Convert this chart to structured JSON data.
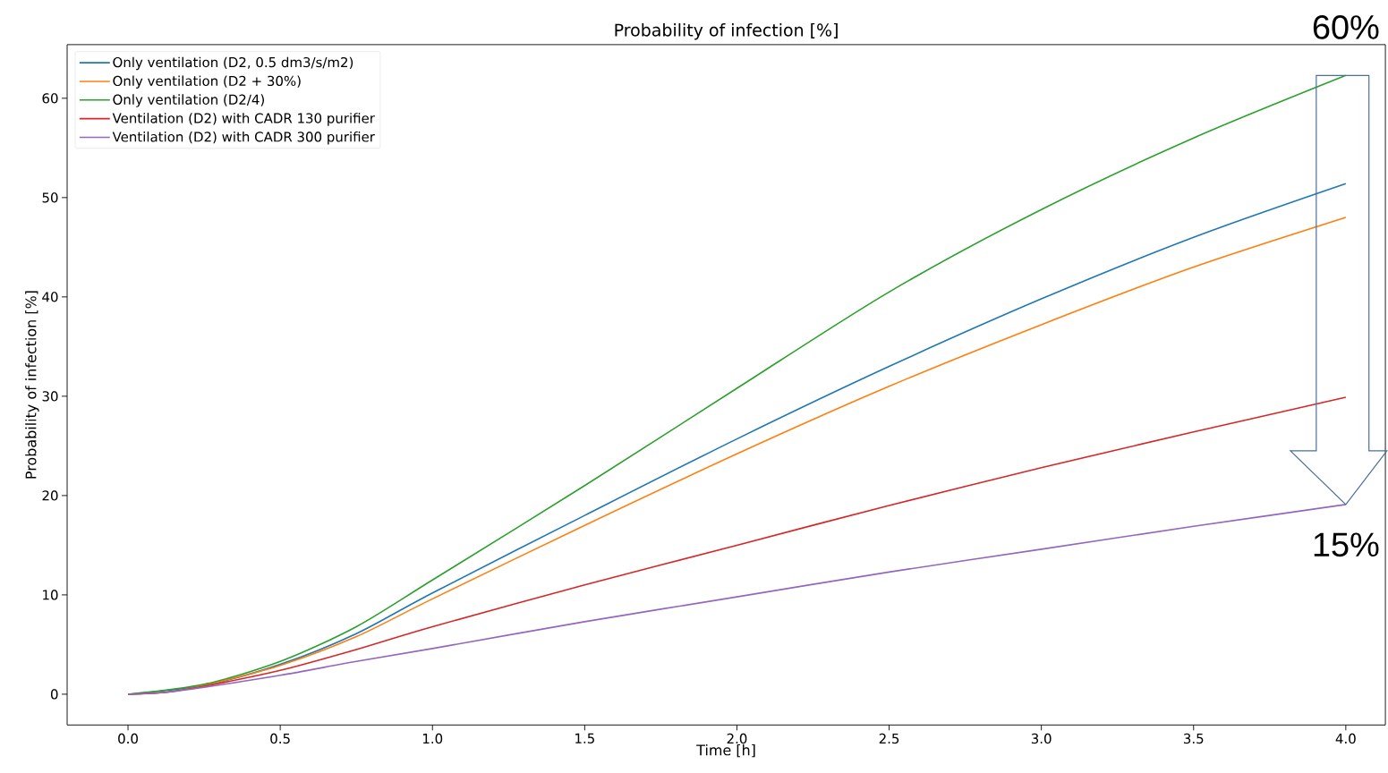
{
  "chart_data": {
    "type": "line",
    "title": "Probability of infection [%]",
    "xlabel": "Time [h]",
    "ylabel": "Probability of infection [%]",
    "x": [
      0,
      0.125,
      0.25,
      0.5,
      0.75,
      1.0,
      1.5,
      2.0,
      2.5,
      3.0,
      3.5,
      4.0
    ],
    "series": [
      {
        "name": "Only ventilation (D2, 0.5 dm3/s/m2)",
        "color": "#1f77b4",
        "values": [
          0,
          null,
          0.9,
          3.0,
          6.1,
          10.2,
          18,
          25.7,
          33,
          39.8,
          46,
          51.4
        ]
      },
      {
        "name": "Only ventilation (D2 + 30%)",
        "color": "#ff7f0e",
        "values": [
          0,
          0.2,
          0.9,
          2.9,
          5.8,
          9.6,
          17,
          24.2,
          31,
          37.2,
          43,
          48
        ]
      },
      {
        "name": "Only ventilation (D2/4)",
        "color": "#2ca02c",
        "values": [
          0,
          null,
          1.0,
          3.3,
          6.8,
          11.5,
          21,
          30.8,
          40.5,
          48.8,
          56,
          62.3
        ]
      },
      {
        "name": "Ventilation (D2) with CADR 130 purifier",
        "color": "#d62728",
        "values": [
          0,
          0.2,
          0.8,
          2.4,
          4.5,
          6.8,
          11,
          15,
          19,
          22.8,
          26.4,
          29.9
        ]
      },
      {
        "name": "Ventilation (D2) with CADR 300 purifier",
        "color": "#9467bd",
        "values": [
          0,
          0.2,
          0.7,
          1.9,
          3.3,
          4.6,
          7.3,
          9.8,
          12.3,
          14.6,
          16.9,
          19.1
        ]
      }
    ],
    "xlim": [
      -0.2,
      4.13
    ],
    "ylim": [
      -3.1,
      65.4
    ],
    "xticks": [
      {
        "value": 0,
        "label": "0.0"
      },
      0.5,
      {
        "value": 1,
        "label": "1.0"
      },
      1.5,
      {
        "value": 2,
        "label": "2.0"
      },
      2.5,
      {
        "value": 3,
        "label": "3.0"
      },
      3.5,
      {
        "value": 4,
        "label": "4.0"
      }
    ],
    "yticks": [
      0,
      10,
      20,
      30,
      40,
      50,
      60
    ],
    "legend": "top left",
    "grid": false,
    "marker": "none",
    "line_style": "solid",
    "annotations": [
      {
        "text": "60%",
        "x": 4,
        "y": 62.3
      },
      {
        "text": "15%",
        "x": 4,
        "y": 19.1
      }
    ]
  }
}
